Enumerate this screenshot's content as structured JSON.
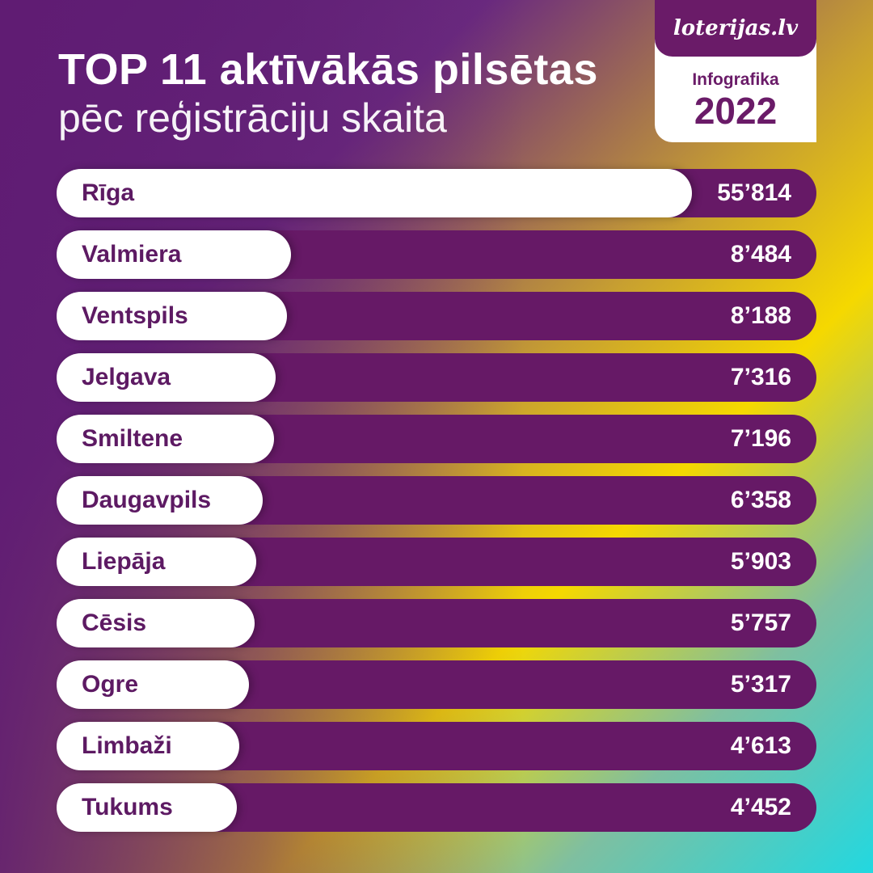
{
  "header": {
    "title_line1": "TOP 11 aktīvākās pilsētas",
    "title_line2": "pēc reģistrāciju skaita"
  },
  "badge": {
    "brand": "loterijas.lv",
    "label": "Infografika",
    "year": "2022"
  },
  "colors": {
    "bar_track": "#661966",
    "bar_fill": "#ffffff",
    "text_purple": "#5d1a63"
  },
  "chart_data": {
    "type": "bar",
    "orientation": "horizontal",
    "categories": [
      "Rīga",
      "Valmiera",
      "Ventspils",
      "Jelgava",
      "Smiltene",
      "Daugavpils",
      "Liepāja",
      "Cēsis",
      "Ogre",
      "Limbaži",
      "Tukums"
    ],
    "values": [
      55814,
      8484,
      8188,
      7316,
      7196,
      6358,
      5903,
      5757,
      5317,
      4613,
      4452
    ],
    "value_labels": [
      "55’814",
      "8’484",
      "8’188",
      "7’316",
      "7’196",
      "6’358",
      "5’903",
      "5’757",
      "5’317",
      "4’613",
      "4’452"
    ],
    "xlim": [
      0,
      65000
    ]
  }
}
